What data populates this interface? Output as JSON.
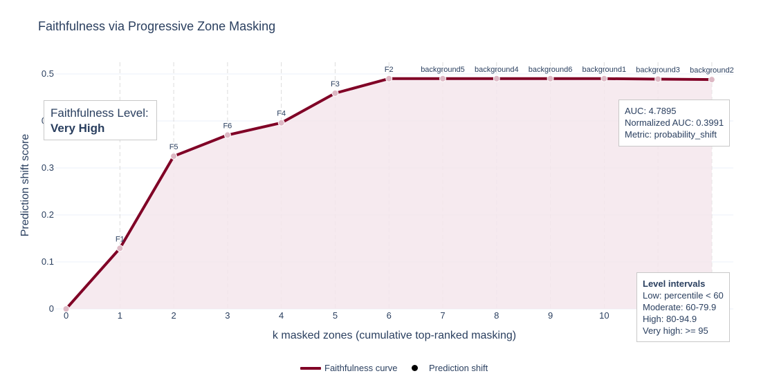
{
  "chart_data": {
    "type": "line",
    "title": "Faithfulness via Progressive Zone Masking",
    "xlabel": "k masked zones (cumulative top-ranked masking)",
    "ylabel": "Prediction shift score",
    "xlim": [
      -0.2,
      12.4
    ],
    "ylim": [
      0,
      0.525
    ],
    "x_ticks": [
      0,
      1,
      2,
      3,
      4,
      5,
      6,
      7,
      8,
      9,
      10,
      11,
      12
    ],
    "y_ticks": [
      0,
      0.1,
      0.2,
      0.3,
      0.4,
      0.5
    ],
    "y_tick_labels": [
      "0",
      "0.1",
      "0.2",
      "0.3",
      "0.4",
      "0.5"
    ],
    "grid": true,
    "area_fill": true,
    "series": [
      {
        "name": "Faithfulness curve",
        "x": [
          0,
          1,
          2,
          3,
          4,
          5,
          6,
          7,
          8,
          9,
          10,
          11,
          12
        ],
        "y": [
          0.0,
          0.129,
          0.325,
          0.37,
          0.396,
          0.459,
          0.49,
          0.49,
          0.49,
          0.49,
          0.49,
          0.489,
          0.488
        ],
        "point_labels": [
          "",
          "F1",
          "F5",
          "F6",
          "F4",
          "F3",
          "F2",
          "background5",
          "background4",
          "background6",
          "background1",
          "background3",
          "background2"
        ]
      }
    ],
    "legend": {
      "position": "bottom-center",
      "entries": [
        "Faithfulness curve",
        "Prediction shift"
      ]
    },
    "colors": {
      "line": "#800026",
      "marker": "#ddb8c4",
      "fill": "#f4e6ec"
    }
  },
  "level_box": {
    "label": "Faithfulness Level:",
    "value": "Very High"
  },
  "auc_box": {
    "lines": [
      "AUC: 4.7895",
      "Normalized AUC: 0.3991",
      "Metric: probability_shift"
    ]
  },
  "intervals_box": {
    "title": "Level intervals",
    "lines": [
      "Low: percentile < 60",
      "Moderate: 60-79.9",
      "High: 80-94.9",
      "Very high: >= 95"
    ]
  }
}
